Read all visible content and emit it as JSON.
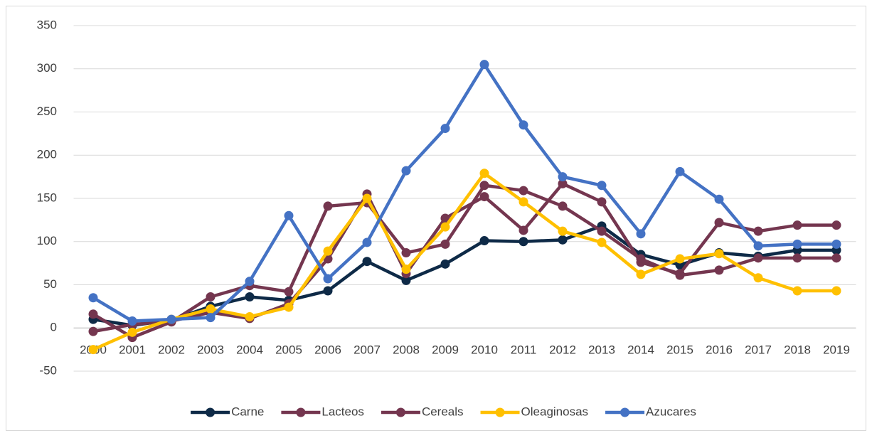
{
  "chart_data": {
    "type": "line",
    "categories": [
      "2000",
      "2001",
      "2002",
      "2003",
      "2004",
      "2005",
      "2006",
      "2007",
      "2008",
      "2009",
      "2010",
      "2011",
      "2012",
      "2013",
      "2014",
      "2015",
      "2016",
      "2017",
      "2018",
      "2019"
    ],
    "series": [
      {
        "name": "Carne",
        "color": "#0e2a47",
        "values": [
          10,
          3,
          9,
          25,
          36,
          32,
          43,
          77,
          55,
          74,
          101,
          100,
          102,
          118,
          85,
          73,
          87,
          83,
          90,
          90
        ]
      },
      {
        "name": "Lacteos",
        "color": "#74364f",
        "values": [
          16,
          -11,
          7,
          36,
          49,
          42,
          141,
          145,
          87,
          97,
          165,
          159,
          141,
          112,
          80,
          61,
          67,
          81,
          81,
          81
        ]
      },
      {
        "name": "Cereals",
        "color": "#74364f",
        "values": [
          -4,
          4,
          8,
          18,
          11,
          28,
          80,
          155,
          63,
          127,
          152,
          113,
          167,
          146,
          76,
          63,
          122,
          112,
          119,
          119
        ]
      },
      {
        "name": "Oleaginosas",
        "color": "#ffc000",
        "values": [
          -25,
          -5,
          10,
          22,
          13,
          24,
          89,
          150,
          68,
          117,
          179,
          146,
          112,
          99,
          62,
          80,
          86,
          58,
          43,
          43
        ]
      },
      {
        "name": "Azucares",
        "color": "#4472c4",
        "values": [
          35,
          8,
          10,
          12,
          54,
          130,
          57,
          99,
          182,
          231,
          305,
          235,
          175,
          165,
          109,
          181,
          149,
          95,
          97,
          97
        ]
      }
    ],
    "ylim": [
      -50,
      350
    ],
    "yticks": [
      -50,
      0,
      50,
      100,
      150,
      200,
      250,
      300,
      350
    ],
    "grid": true,
    "legend": "bottom"
  }
}
